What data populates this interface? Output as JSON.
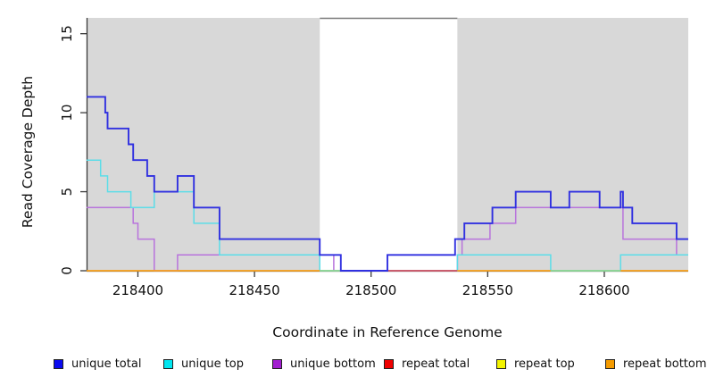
{
  "chart_data": {
    "type": "line",
    "subtype": "step",
    "title": "",
    "xlabel": "Coordinate in Reference Genome",
    "ylabel": "Read Coverage Depth",
    "xlim": [
      218378,
      218636
    ],
    "ylim": [
      0,
      16
    ],
    "x_ticks": [
      218400,
      218450,
      218500,
      218550,
      218600
    ],
    "y_ticks": [
      0,
      5,
      10,
      15
    ],
    "grid": false,
    "legend_position": "bottom",
    "plot_bg": "#ffffff",
    "region_color": "#d8d8d8",
    "axis_color": "#3a3a3a",
    "gap_top_line_color": "#7a7a7a",
    "background_regions": [
      {
        "name": "covered-left",
        "x0": 218378,
        "x1": 218478
      },
      {
        "name": "covered-right",
        "x0": 218537,
        "x1": 218636
      }
    ],
    "uncovered_gap": {
      "x0": 218478,
      "x1": 218537
    },
    "series": [
      {
        "name": "unique total",
        "color": "#3030e0",
        "width": 1.9,
        "points": [
          [
            218378,
            11
          ],
          [
            218386,
            10
          ],
          [
            218387,
            9
          ],
          [
            218396,
            8
          ],
          [
            218398,
            7
          ],
          [
            218404,
            6
          ],
          [
            218407,
            5
          ],
          [
            218417,
            6
          ],
          [
            218424,
            4
          ],
          [
            218435,
            2
          ],
          [
            218478,
            1
          ],
          [
            218487,
            0
          ],
          [
            218507,
            1
          ],
          [
            218536,
            2
          ],
          [
            218540,
            3
          ],
          [
            218552,
            4
          ],
          [
            218562,
            5
          ],
          [
            218577,
            4
          ],
          [
            218585,
            5
          ],
          [
            218598,
            4
          ],
          [
            218607,
            5
          ],
          [
            218608,
            4
          ],
          [
            218612,
            3
          ],
          [
            218631,
            2
          ]
        ]
      },
      {
        "name": "unique top",
        "color": "#5cdde8",
        "width": 1.5,
        "points": [
          [
            218378,
            7
          ],
          [
            218384,
            6
          ],
          [
            218387,
            5
          ],
          [
            218397,
            4
          ],
          [
            218407,
            5
          ],
          [
            218424,
            3
          ],
          [
            218435,
            1
          ],
          [
            218478,
            0
          ],
          [
            218537,
            1
          ],
          [
            218577,
            0
          ],
          [
            218607,
            1
          ]
        ]
      },
      {
        "name": "unique bottom",
        "color": "#b873dc",
        "width": 1.5,
        "points": [
          [
            218378,
            4
          ],
          [
            218398,
            3
          ],
          [
            218400,
            2
          ],
          [
            218407,
            0
          ],
          [
            218417,
            1
          ],
          [
            218484,
            0
          ],
          [
            218537,
            1
          ],
          [
            218539,
            2
          ],
          [
            218551,
            3
          ],
          [
            218562,
            4
          ],
          [
            218608,
            2
          ],
          [
            218631,
            1
          ]
        ]
      },
      {
        "name": "repeat total",
        "color": "#e60000",
        "width": 1.5,
        "points": [
          [
            218378,
            0
          ]
        ]
      },
      {
        "name": "repeat top",
        "color": "#f4f400",
        "width": 1.5,
        "points": [
          [
            218378,
            0
          ]
        ]
      },
      {
        "name": "repeat bottom",
        "color": "#f9a01b",
        "width": 1.8,
        "points": [
          [
            218378,
            0
          ]
        ]
      }
    ],
    "baseline_overlap_segments": [
      {
        "x0": 218378,
        "x1": 218478,
        "color": "#f9a01b"
      },
      {
        "x0": 218478,
        "x1": 218487,
        "color": "#8fd48f"
      },
      {
        "x0": 218507,
        "x1": 218537,
        "color": "#d14f5e"
      },
      {
        "x0": 218537,
        "x1": 218577,
        "color": "#f9a01b"
      },
      {
        "x0": 218577,
        "x1": 218607,
        "color": "#8fd48f"
      },
      {
        "x0": 218607,
        "x1": 218636,
        "color": "#f9a01b"
      }
    ]
  },
  "legend": {
    "items": [
      {
        "label": "unique total",
        "color": "#0a0af0"
      },
      {
        "label": "unique top",
        "color": "#00e6f0"
      },
      {
        "label": "unique bottom",
        "color": "#a21fd0"
      },
      {
        "label": "repeat total",
        "color": "#ef0000"
      },
      {
        "label": "repeat top",
        "color": "#f4f400"
      },
      {
        "label": "repeat bottom",
        "color": "#f59b00"
      }
    ]
  }
}
